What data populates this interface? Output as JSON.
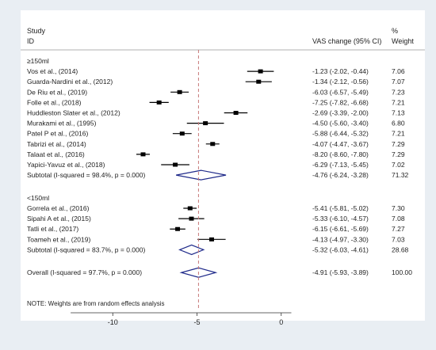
{
  "header": {
    "study_label": "Study",
    "id_label": "ID",
    "effect_label": "VAS change (95% CI)",
    "pct_label": "%",
    "weight_label": "Weight"
  },
  "note": "NOTE: Weights are from random effects analysis",
  "chart_data": {
    "type": "forest",
    "xlabel": "",
    "xticks": [
      -10,
      -5,
      0
    ],
    "xlim": [
      -15,
      1
    ],
    "reference_line": -4.91,
    "groups": [
      {
        "label": "≥150ml",
        "studies": [
          {
            "name": "Vos  et al., (2014)",
            "est": -1.23,
            "lo": -2.02,
            "hi": -0.44,
            "ci_text": "-1.23 (-2.02, -0.44)",
            "weight": "7.06"
          },
          {
            "name": "Guarda-Nardini  et al., (2012)",
            "est": -1.34,
            "lo": -2.12,
            "hi": -0.56,
            "ci_text": "-1.34 (-2.12, -0.56)",
            "weight": "7.07"
          },
          {
            "name": "De Riu et al., (2019)",
            "est": -6.03,
            "lo": -6.57,
            "hi": -5.49,
            "ci_text": "-6.03 (-6.57, -5.49)",
            "weight": "7.23"
          },
          {
            "name": "Folle et al., (2018)",
            "est": -7.25,
            "lo": -7.82,
            "hi": -6.68,
            "ci_text": "-7.25 (-7.82, -6.68)",
            "weight": "7.21"
          },
          {
            "name": "Huddleston Slater et al., (2012)",
            "est": -2.69,
            "lo": -3.39,
            "hi": -2.0,
            "ci_text": "-2.69 (-3.39, -2.00)",
            "weight": "7.13"
          },
          {
            "name": "Murakami et al., (1995)",
            "est": -4.5,
            "lo": -5.6,
            "hi": -3.4,
            "ci_text": "-4.50 (-5.60, -3.40)",
            "weight": "6.80"
          },
          {
            "name": "Patel P et al., (2016)",
            "est": -5.88,
            "lo": -6.44,
            "hi": -5.32,
            "ci_text": "-5.88 (-6.44, -5.32)",
            "weight": "7.21"
          },
          {
            "name": "Tabrizi  et al., (2014)",
            "est": -4.07,
            "lo": -4.47,
            "hi": -3.67,
            "ci_text": "-4.07 (-4.47, -3.67)",
            "weight": "7.29"
          },
          {
            "name": "Talaat  et al., (2016)",
            "est": -8.2,
            "lo": -8.6,
            "hi": -7.8,
            "ci_text": "-8.20 (-8.60, -7.80)",
            "weight": "7.29"
          },
          {
            "name": "Yapici-Yavuz et al., (2018)",
            "est": -6.29,
            "lo": -7.13,
            "hi": -5.45,
            "ci_text": "-6.29 (-7.13, -5.45)",
            "weight": "7.02"
          }
        ],
        "subtotal": {
          "name": "Subtotal  (I-squared = 98.4%, p = 0.000)",
          "est": -4.76,
          "lo": -6.24,
          "hi": -3.28,
          "ci_text": "-4.76 (-6.24, -3.28)",
          "weight": "71.32"
        }
      },
      {
        "label": "<150ml",
        "studies": [
          {
            "name": "Gorrela  et al., (2016)",
            "est": -5.41,
            "lo": -5.81,
            "hi": -5.02,
            "ci_text": "-5.41 (-5.81, -5.02)",
            "weight": "7.30"
          },
          {
            "name": "Sipahi A et al., (2015)",
            "est": -5.33,
            "lo": -6.1,
            "hi": -4.57,
            "ci_text": "-5.33 (-6.10, -4.57)",
            "weight": "7.08"
          },
          {
            "name": "Tatli  et al., (2017)",
            "est": -6.15,
            "lo": -6.61,
            "hi": -5.69,
            "ci_text": "-6.15 (-6.61, -5.69)",
            "weight": "7.27"
          },
          {
            "name": "Toameh et al., (2019)",
            "est": -4.13,
            "lo": -4.97,
            "hi": -3.3,
            "ci_text": "-4.13 (-4.97, -3.30)",
            "weight": "7.03"
          }
        ],
        "subtotal": {
          "name": "Subtotal  (I-squared = 83.7%, p = 0.000)",
          "est": -5.32,
          "lo": -6.03,
          "hi": -4.61,
          "ci_text": "-5.32 (-6.03, -4.61)",
          "weight": "28.68"
        }
      }
    ],
    "overall": {
      "name": "Overall  (I-squared = 97.7%, p = 0.000)",
      "est": -4.91,
      "lo": -5.93,
      "hi": -3.89,
      "ci_text": "-4.91 (-5.93, -3.89)",
      "weight": "100.00"
    },
    "colors": {
      "marker": "#000000",
      "diamond": "#1f2a8a",
      "reference": "#c87878",
      "background": "#e9eef3"
    }
  }
}
